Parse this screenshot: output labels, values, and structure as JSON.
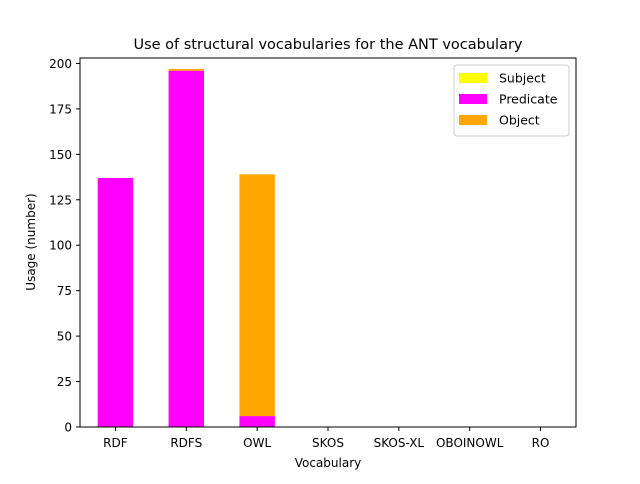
{
  "chart_data": {
    "type": "bar",
    "stacked": true,
    "title": "Use of structural vocabularies for the ANT vocabulary",
    "xlabel": "Vocabulary",
    "ylabel": "Usage (number)",
    "categories": [
      "RDF",
      "RDFS",
      "OWL",
      "SKOS",
      "SKOS-XL",
      "OBOINOWL",
      "RO"
    ],
    "series": [
      {
        "name": "Subject",
        "color": "#ffff00",
        "values": [
          0,
          0,
          0,
          0,
          0,
          0,
          0
        ]
      },
      {
        "name": "Predicate",
        "color": "#ff00ff",
        "values": [
          137,
          196,
          6,
          0,
          0,
          0,
          0
        ]
      },
      {
        "name": "Object",
        "color": "#ffa500",
        "values": [
          0,
          1,
          133,
          0,
          0,
          0,
          0
        ]
      }
    ],
    "ylim": [
      0,
      203
    ],
    "yticks": [
      0,
      25,
      50,
      75,
      100,
      125,
      150,
      175,
      200
    ],
    "grid": false,
    "legend_position": "top-right"
  }
}
